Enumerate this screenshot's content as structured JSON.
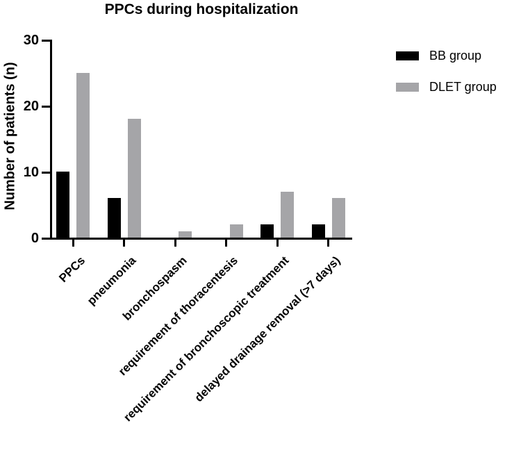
{
  "title": "PPCs during hospitalization",
  "legend": [
    {
      "label": "BB group",
      "color": "#000000"
    },
    {
      "label": "DLET group",
      "color": "#a5a5a8"
    }
  ],
  "chart_data": {
    "type": "bar",
    "title": "PPCs during hospitalization",
    "xlabel": "",
    "ylabel": "Number of patients (n)",
    "ylim": [
      0,
      30
    ],
    "yticks": [
      0,
      10,
      20,
      30
    ],
    "grid": false,
    "legend_position": "top-right",
    "categories": [
      "PPCs",
      "pneumonia",
      "bronchospasm",
      "requirement of thoracentesis",
      "requirement of bronchoscopic treatment",
      "delayed drainage removal (>7 days)"
    ],
    "series": [
      {
        "name": "BB group",
        "color": "#000000",
        "values": [
          10,
          6,
          0,
          0,
          2,
          2
        ]
      },
      {
        "name": "DLET group",
        "color": "#a5a5a8",
        "values": [
          25,
          18,
          1,
          2,
          7,
          6
        ]
      }
    ]
  }
}
